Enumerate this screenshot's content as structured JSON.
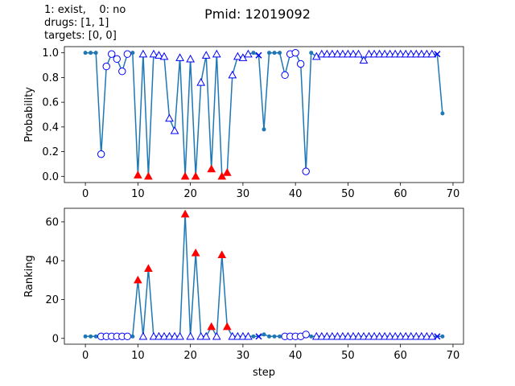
{
  "figure": {
    "title": "Pmid: 12019092",
    "annotation_lines": [
      "1: exist,    0: no",
      "drugs: [1, 1]",
      "targets: [0, 0]"
    ]
  },
  "colors": {
    "line": "#1f77b4",
    "marker_edge": "#0000ff",
    "marker_face": "#ffffff",
    "triangle_red": "#ff0000"
  },
  "marker_legend": {
    "dot": "small filled blue dot",
    "circle": "open circle",
    "triangle": "open triangle",
    "red_triangle": "filled red triangle",
    "x": "blue x"
  },
  "chart_data": [
    {
      "type": "line",
      "title": "",
      "xlabel": "",
      "ylabel": "Probability",
      "xlim": [
        -4,
        72
      ],
      "ylim": [
        -0.05,
        1.05
      ],
      "xticks": [
        0,
        10,
        20,
        30,
        40,
        50,
        60,
        70
      ],
      "yticks": [
        0.0,
        0.2,
        0.4,
        0.6,
        0.8,
        1.0
      ],
      "ytick_labels": [
        "0.0",
        "0.2",
        "0.4",
        "0.6",
        "0.8",
        "1.0"
      ],
      "grid": false,
      "points": [
        {
          "x": 0,
          "y": 1.0,
          "m": "dot"
        },
        {
          "x": 1,
          "y": 1.0,
          "m": "dot"
        },
        {
          "x": 2,
          "y": 1.0,
          "m": "dot"
        },
        {
          "x": 3,
          "y": 0.18,
          "m": "circle"
        },
        {
          "x": 4,
          "y": 0.89,
          "m": "circle"
        },
        {
          "x": 5,
          "y": 0.99,
          "m": "circle"
        },
        {
          "x": 6,
          "y": 0.95,
          "m": "circle"
        },
        {
          "x": 7,
          "y": 0.85,
          "m": "circle"
        },
        {
          "x": 8,
          "y": 0.99,
          "m": "circle"
        },
        {
          "x": 9,
          "y": 1.0,
          "m": "dot"
        },
        {
          "x": 10,
          "y": 0.01,
          "m": "red_triangle"
        },
        {
          "x": 11,
          "y": 0.99,
          "m": "triangle"
        },
        {
          "x": 12,
          "y": 0.0,
          "m": "red_triangle"
        },
        {
          "x": 13,
          "y": 0.99,
          "m": "triangle"
        },
        {
          "x": 14,
          "y": 0.98,
          "m": "triangle"
        },
        {
          "x": 15,
          "y": 0.97,
          "m": "triangle"
        },
        {
          "x": 16,
          "y": 0.47,
          "m": "triangle"
        },
        {
          "x": 17,
          "y": 0.37,
          "m": "triangle"
        },
        {
          "x": 18,
          "y": 0.96,
          "m": "triangle"
        },
        {
          "x": 19,
          "y": 0.0,
          "m": "red_triangle"
        },
        {
          "x": 20,
          "y": 0.95,
          "m": "triangle"
        },
        {
          "x": 21,
          "y": 0.0,
          "m": "red_triangle"
        },
        {
          "x": 22,
          "y": 0.76,
          "m": "triangle"
        },
        {
          "x": 23,
          "y": 0.98,
          "m": "triangle"
        },
        {
          "x": 24,
          "y": 0.06,
          "m": "red_triangle"
        },
        {
          "x": 25,
          "y": 0.99,
          "m": "triangle"
        },
        {
          "x": 26,
          "y": 0.0,
          "m": "red_triangle"
        },
        {
          "x": 27,
          "y": 0.03,
          "m": "red_triangle"
        },
        {
          "x": 28,
          "y": 0.82,
          "m": "triangle"
        },
        {
          "x": 29,
          "y": 0.97,
          "m": "triangle"
        },
        {
          "x": 30,
          "y": 0.96,
          "m": "triangle"
        },
        {
          "x": 31,
          "y": 0.99,
          "m": "triangle"
        },
        {
          "x": 32,
          "y": 1.0,
          "m": "dot"
        },
        {
          "x": 33,
          "y": 0.98,
          "m": "x"
        },
        {
          "x": 34,
          "y": 0.38,
          "m": "dot"
        },
        {
          "x": 35,
          "y": 1.0,
          "m": "dot"
        },
        {
          "x": 36,
          "y": 1.0,
          "m": "dot"
        },
        {
          "x": 37,
          "y": 1.0,
          "m": "dot"
        },
        {
          "x": 38,
          "y": 0.82,
          "m": "circle"
        },
        {
          "x": 39,
          "y": 0.99,
          "m": "circle"
        },
        {
          "x": 40,
          "y": 1.0,
          "m": "circle"
        },
        {
          "x": 41,
          "y": 0.91,
          "m": "circle"
        },
        {
          "x": 42,
          "y": 0.04,
          "m": "circle"
        },
        {
          "x": 43,
          "y": 1.0,
          "m": "dot"
        },
        {
          "x": 44,
          "y": 0.97,
          "m": "triangle"
        },
        {
          "x": 45,
          "y": 0.99,
          "m": "triangle"
        },
        {
          "x": 46,
          "y": 0.99,
          "m": "triangle"
        },
        {
          "x": 47,
          "y": 0.99,
          "m": "triangle"
        },
        {
          "x": 48,
          "y": 0.99,
          "m": "triangle"
        },
        {
          "x": 49,
          "y": 0.99,
          "m": "triangle"
        },
        {
          "x": 50,
          "y": 0.99,
          "m": "triangle"
        },
        {
          "x": 51,
          "y": 0.99,
          "m": "triangle"
        },
        {
          "x": 52,
          "y": 0.99,
          "m": "triangle"
        },
        {
          "x": 53,
          "y": 0.94,
          "m": "triangle"
        },
        {
          "x": 54,
          "y": 0.99,
          "m": "triangle"
        },
        {
          "x": 55,
          "y": 0.99,
          "m": "triangle"
        },
        {
          "x": 56,
          "y": 0.99,
          "m": "triangle"
        },
        {
          "x": 57,
          "y": 0.99,
          "m": "triangle"
        },
        {
          "x": 58,
          "y": 0.99,
          "m": "triangle"
        },
        {
          "x": 59,
          "y": 0.99,
          "m": "triangle"
        },
        {
          "x": 60,
          "y": 0.99,
          "m": "triangle"
        },
        {
          "x": 61,
          "y": 0.99,
          "m": "triangle"
        },
        {
          "x": 62,
          "y": 0.99,
          "m": "triangle"
        },
        {
          "x": 63,
          "y": 0.99,
          "m": "triangle"
        },
        {
          "x": 64,
          "y": 0.99,
          "m": "triangle"
        },
        {
          "x": 65,
          "y": 0.99,
          "m": "triangle"
        },
        {
          "x": 66,
          "y": 0.99,
          "m": "triangle"
        },
        {
          "x": 67,
          "y": 0.99,
          "m": "x"
        },
        {
          "x": 68,
          "y": 0.51,
          "m": "dot"
        }
      ]
    },
    {
      "type": "line",
      "title": "",
      "xlabel": "step",
      "ylabel": "Ranking",
      "xlim": [
        -4,
        72
      ],
      "ylim": [
        -3,
        67
      ],
      "xticks": [
        0,
        10,
        20,
        30,
        40,
        50,
        60,
        70
      ],
      "yticks": [
        0,
        20,
        40,
        60
      ],
      "ytick_labels": [
        "0",
        "20",
        "40",
        "60"
      ],
      "grid": false,
      "points": [
        {
          "x": 0,
          "y": 1,
          "m": "dot"
        },
        {
          "x": 1,
          "y": 1,
          "m": "dot"
        },
        {
          "x": 2,
          "y": 1,
          "m": "dot"
        },
        {
          "x": 3,
          "y": 1,
          "m": "circle"
        },
        {
          "x": 4,
          "y": 1,
          "m": "circle"
        },
        {
          "x": 5,
          "y": 1,
          "m": "circle"
        },
        {
          "x": 6,
          "y": 1,
          "m": "circle"
        },
        {
          "x": 7,
          "y": 1,
          "m": "circle"
        },
        {
          "x": 8,
          "y": 1,
          "m": "circle"
        },
        {
          "x": 9,
          "y": 1,
          "m": "dot"
        },
        {
          "x": 10,
          "y": 30,
          "m": "red_triangle"
        },
        {
          "x": 11,
          "y": 1,
          "m": "triangle"
        },
        {
          "x": 12,
          "y": 36,
          "m": "red_triangle"
        },
        {
          "x": 13,
          "y": 1,
          "m": "triangle"
        },
        {
          "x": 14,
          "y": 1,
          "m": "triangle"
        },
        {
          "x": 15,
          "y": 1,
          "m": "triangle"
        },
        {
          "x": 16,
          "y": 1,
          "m": "triangle"
        },
        {
          "x": 17,
          "y": 1,
          "m": "triangle"
        },
        {
          "x": 18,
          "y": 1,
          "m": "triangle"
        },
        {
          "x": 19,
          "y": 64,
          "m": "red_triangle"
        },
        {
          "x": 20,
          "y": 1,
          "m": "triangle"
        },
        {
          "x": 21,
          "y": 44,
          "m": "red_triangle"
        },
        {
          "x": 22,
          "y": 1,
          "m": "triangle"
        },
        {
          "x": 23,
          "y": 1,
          "m": "triangle"
        },
        {
          "x": 24,
          "y": 6,
          "m": "red_triangle"
        },
        {
          "x": 25,
          "y": 1,
          "m": "triangle"
        },
        {
          "x": 26,
          "y": 43,
          "m": "red_triangle"
        },
        {
          "x": 27,
          "y": 6,
          "m": "red_triangle"
        },
        {
          "x": 28,
          "y": 1,
          "m": "triangle"
        },
        {
          "x": 29,
          "y": 1,
          "m": "triangle"
        },
        {
          "x": 30,
          "y": 1,
          "m": "triangle"
        },
        {
          "x": 31,
          "y": 1,
          "m": "triangle"
        },
        {
          "x": 32,
          "y": 1,
          "m": "dot"
        },
        {
          "x": 33,
          "y": 1,
          "m": "x"
        },
        {
          "x": 34,
          "y": 2,
          "m": "dot"
        },
        {
          "x": 35,
          "y": 1,
          "m": "dot"
        },
        {
          "x": 36,
          "y": 1,
          "m": "dot"
        },
        {
          "x": 37,
          "y": 1,
          "m": "dot"
        },
        {
          "x": 38,
          "y": 1,
          "m": "circle"
        },
        {
          "x": 39,
          "y": 1,
          "m": "circle"
        },
        {
          "x": 40,
          "y": 1,
          "m": "circle"
        },
        {
          "x": 41,
          "y": 1,
          "m": "circle"
        },
        {
          "x": 42,
          "y": 2,
          "m": "circle"
        },
        {
          "x": 43,
          "y": 1,
          "m": "dot"
        },
        {
          "x": 44,
          "y": 1,
          "m": "triangle"
        },
        {
          "x": 45,
          "y": 1,
          "m": "triangle"
        },
        {
          "x": 46,
          "y": 1,
          "m": "triangle"
        },
        {
          "x": 47,
          "y": 1,
          "m": "triangle"
        },
        {
          "x": 48,
          "y": 1,
          "m": "triangle"
        },
        {
          "x": 49,
          "y": 1,
          "m": "triangle"
        },
        {
          "x": 50,
          "y": 1,
          "m": "triangle"
        },
        {
          "x": 51,
          "y": 1,
          "m": "triangle"
        },
        {
          "x": 52,
          "y": 1,
          "m": "triangle"
        },
        {
          "x": 53,
          "y": 1,
          "m": "triangle"
        },
        {
          "x": 54,
          "y": 1,
          "m": "triangle"
        },
        {
          "x": 55,
          "y": 1,
          "m": "triangle"
        },
        {
          "x": 56,
          "y": 1,
          "m": "triangle"
        },
        {
          "x": 57,
          "y": 1,
          "m": "triangle"
        },
        {
          "x": 58,
          "y": 1,
          "m": "triangle"
        },
        {
          "x": 59,
          "y": 1,
          "m": "triangle"
        },
        {
          "x": 60,
          "y": 1,
          "m": "triangle"
        },
        {
          "x": 61,
          "y": 1,
          "m": "triangle"
        },
        {
          "x": 62,
          "y": 1,
          "m": "triangle"
        },
        {
          "x": 63,
          "y": 1,
          "m": "triangle"
        },
        {
          "x": 64,
          "y": 1,
          "m": "triangle"
        },
        {
          "x": 65,
          "y": 1,
          "m": "triangle"
        },
        {
          "x": 66,
          "y": 1,
          "m": "triangle"
        },
        {
          "x": 67,
          "y": 1,
          "m": "x"
        },
        {
          "x": 68,
          "y": 1,
          "m": "dot"
        }
      ]
    }
  ]
}
